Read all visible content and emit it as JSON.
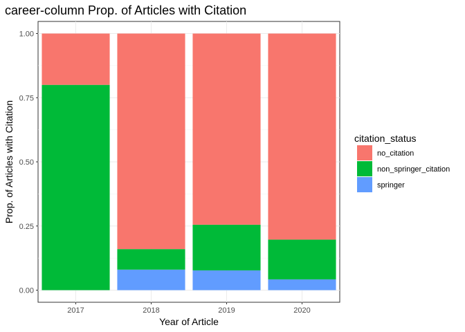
{
  "chart_data": {
    "type": "bar",
    "stacked": true,
    "title": "career-column Prop. of Articles with Citation",
    "xlabel": "Year of Article",
    "ylabel": "Prop. of Articles with Citation",
    "categories": [
      "2017",
      "2018",
      "2019",
      "2020"
    ],
    "ylim": [
      0,
      1
    ],
    "yticks": [
      "0.00",
      "0.25",
      "0.50",
      "0.75",
      "1.00"
    ],
    "grid": true,
    "legend": {
      "title": "citation_status",
      "position": "right"
    },
    "series": [
      {
        "name": "springer",
        "color": "#619CFF",
        "values": [
          0.0,
          0.08,
          0.077,
          0.042
        ]
      },
      {
        "name": "non_springer_citation",
        "color": "#00BA38",
        "values": [
          0.8,
          0.08,
          0.178,
          0.155
        ]
      },
      {
        "name": "no_citation",
        "color": "#F8766D",
        "values": [
          0.2,
          0.84,
          0.745,
          0.803
        ]
      }
    ],
    "legend_order": [
      "no_citation",
      "non_springer_citation",
      "springer"
    ]
  }
}
